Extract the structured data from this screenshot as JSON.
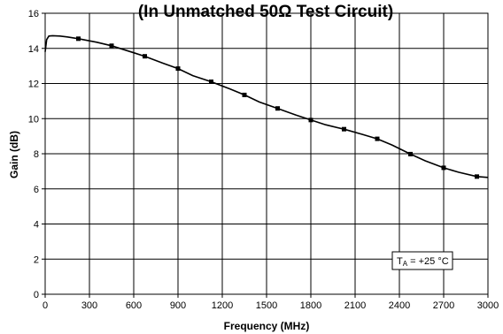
{
  "chart_data": {
    "type": "line",
    "title": "(In Unmatched 50Ω Test Circuit)",
    "xlabel": "Frequency (MHz)",
    "ylabel": "Gain (dB)",
    "xlim": [
      0,
      3000
    ],
    "ylim": [
      0,
      16
    ],
    "x_ticks": [
      "0",
      "300",
      "600",
      "900",
      "1200",
      "1500",
      "1800",
      "2100",
      "2400",
      "2700",
      "3000"
    ],
    "y_ticks": [
      "0",
      "2",
      "4",
      "6",
      "8",
      "10",
      "12",
      "14",
      "16"
    ],
    "grid": true,
    "annotation": {
      "prefix": "T",
      "subscript": "A",
      "rest": " = +25 °C",
      "placement": "bottom-right"
    },
    "series": [
      {
        "x": [
          0,
          10,
          25,
          50,
          100,
          150,
          225,
          350,
          450,
          600,
          675,
          800,
          900,
          1000,
          1125,
          1250,
          1350,
          1450,
          1575,
          1700,
          1800,
          1900,
          2025,
          2150,
          2250,
          2350,
          2475,
          2575,
          2700,
          2800,
          2925,
          3000
        ],
        "y": [
          13.8,
          14.5,
          14.7,
          14.72,
          14.7,
          14.65,
          14.55,
          14.35,
          14.15,
          13.75,
          13.55,
          13.15,
          12.85,
          12.45,
          12.1,
          11.7,
          11.35,
          10.95,
          10.58,
          10.2,
          9.92,
          9.65,
          9.4,
          9.1,
          8.85,
          8.5,
          7.98,
          7.6,
          7.2,
          6.95,
          6.7,
          6.65
        ],
        "markers_x": [
          225,
          450,
          675,
          900,
          1125,
          1350,
          1575,
          1800,
          2025,
          2250,
          2475,
          2700,
          2925
        ],
        "markers_y": [
          14.55,
          14.15,
          13.55,
          12.85,
          12.1,
          11.35,
          10.58,
          9.92,
          9.4,
          8.85,
          7.98,
          7.2,
          6.7
        ],
        "color": "#000000"
      }
    ]
  }
}
